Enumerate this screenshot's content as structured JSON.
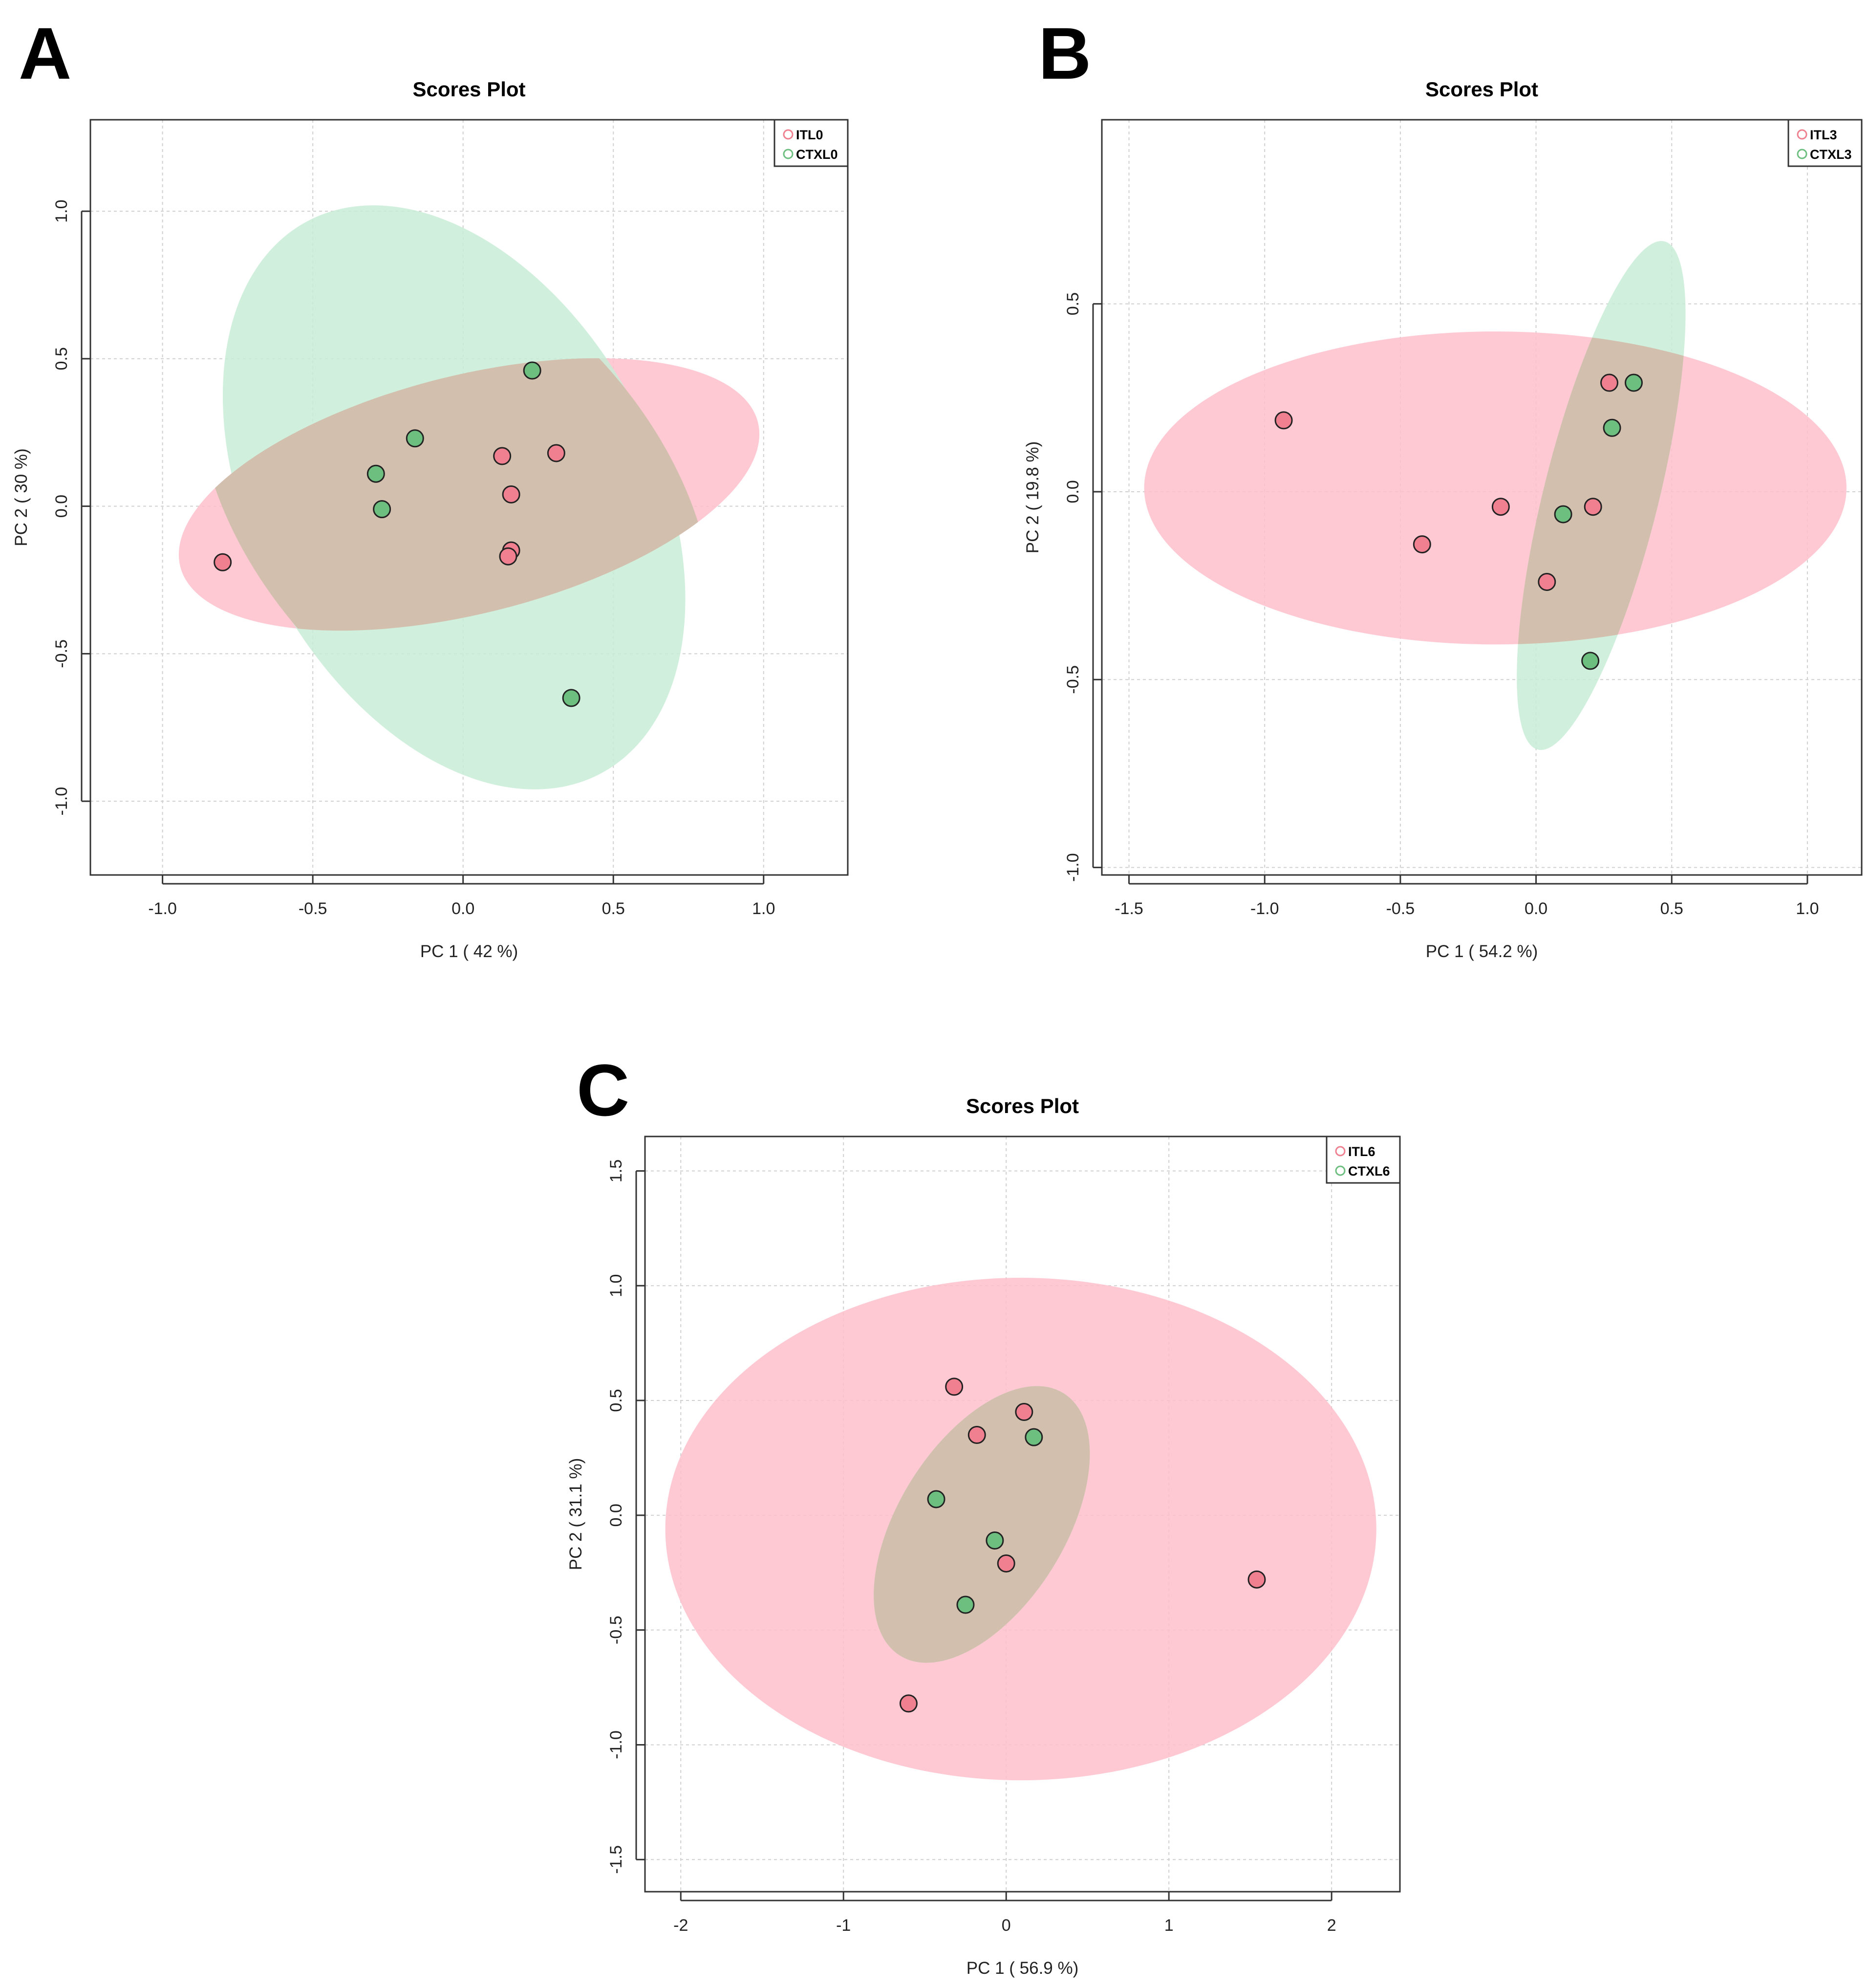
{
  "panels": [
    "A",
    "B",
    "C"
  ],
  "colors": {
    "group1": "#f08090",
    "group2": "#6dbf80",
    "ellipse1": "#ffc0cd",
    "ellipse2": "#c8ecd6"
  },
  "chart_data": [
    {
      "type": "scatter",
      "title": "Scores Plot",
      "xlabel": "PC 1 ( 42 %)",
      "ylabel": "PC 2 ( 30 %)",
      "xlim": [
        -1.24,
        1.28
      ],
      "ylim": [
        -1.25,
        1.31
      ],
      "xticks": [
        "-1.0",
        "-0.5",
        "0.0",
        "0.5",
        "1.0"
      ],
      "yticks": [
        "-1.0",
        "-0.5",
        "0.0",
        "0.5",
        "1.0"
      ],
      "xtick_values": [
        -1.0,
        -0.5,
        0.0,
        0.5,
        1.0
      ],
      "ytick_values": [
        -1.0,
        -0.5,
        0.0,
        0.5,
        1.0
      ],
      "legend": "top-right",
      "grid": true,
      "series": [
        {
          "name": "ITL0",
          "color": "#f08090",
          "points": [
            [
              -0.8,
              -0.19
            ],
            [
              0.13,
              0.17
            ],
            [
              0.31,
              0.18
            ],
            [
              0.16,
              0.04
            ],
            [
              0.16,
              -0.15
            ],
            [
              0.15,
              -0.17
            ]
          ],
          "ellipse": {
            "cx": 0.02,
            "cy": 0.04,
            "rx": 1.0,
            "ry": 0.4,
            "angle": 14
          }
        },
        {
          "name": "CTXL0",
          "color": "#6dbf80",
          "points": [
            [
              0.23,
              0.46
            ],
            [
              -0.16,
              0.23
            ],
            [
              -0.29,
              0.11
            ],
            [
              -0.27,
              -0.01
            ],
            [
              0.36,
              -0.65
            ]
          ],
          "ellipse": {
            "cx": -0.03,
            "cy": 0.03,
            "rx": 1.05,
            "ry": 0.68,
            "angle": -62
          }
        }
      ]
    },
    {
      "type": "scatter",
      "title": "Scores Plot",
      "xlabel": "PC 1 ( 54.2 %)",
      "ylabel": "PC 2 ( 19.8 %)",
      "xlim": [
        -1.6,
        1.2
      ],
      "ylim": [
        -1.02,
        0.99
      ],
      "xticks": [
        "-1.5",
        "-1.0",
        "-0.5",
        "0.0",
        "0.5",
        "1.0"
      ],
      "yticks": [
        "-1.0",
        "-0.5",
        "0.0",
        "0.5"
      ],
      "xtick_values": [
        -1.5,
        -1.0,
        -0.5,
        0.0,
        0.5,
        1.0
      ],
      "ytick_values": [
        -1.0,
        -0.5,
        0.0,
        0.5
      ],
      "legend": "top-right",
      "grid": true,
      "series": [
        {
          "name": "ITL3",
          "color": "#f08090",
          "points": [
            [
              -0.93,
              0.19
            ],
            [
              0.27,
              0.29
            ],
            [
              -0.42,
              -0.14
            ],
            [
              -0.13,
              -0.04
            ],
            [
              0.21,
              -0.04
            ],
            [
              0.04,
              -0.24
            ]
          ],
          "ellipse": {
            "cx": -0.15,
            "cy": 0.01,
            "rx": 1.1,
            "ry": 0.49,
            "angle": 0
          }
        },
        {
          "name": "CTXL3",
          "color": "#6dbf80",
          "points": [
            [
              0.36,
              0.29
            ],
            [
              0.28,
              0.17
            ],
            [
              0.1,
              -0.06
            ],
            [
              0.2,
              -0.45
            ]
          ],
          "ellipse": {
            "cx": 0.24,
            "cy": -0.01,
            "rx": 0.82,
            "ry": 0.18,
            "angle": 76
          }
        }
      ]
    },
    {
      "type": "scatter",
      "title": "Scores Plot",
      "xlabel": "PC 1 ( 56.9 %)",
      "ylabel": "PC 2 ( 31.1 %)",
      "xlim": [
        -2.22,
        2.42
      ],
      "ylim": [
        -1.64,
        1.65
      ],
      "xticks": [
        "-2",
        "-1",
        "0",
        "1",
        "2"
      ],
      "yticks": [
        "-1.5",
        "-1.0",
        "-0.5",
        "0.0",
        "0.5",
        "1.0",
        "1.5"
      ],
      "xtick_values": [
        -2,
        -1,
        0,
        1,
        2
      ],
      "ytick_values": [
        -1.5,
        -1.0,
        -0.5,
        0.0,
        0.5,
        1.0,
        1.5
      ],
      "legend": "top-right",
      "grid": true,
      "series": [
        {
          "name": "ITL6",
          "color": "#f08090",
          "points": [
            [
              -0.32,
              0.56
            ],
            [
              0.11,
              0.45
            ],
            [
              -0.18,
              0.35
            ],
            [
              0.0,
              -0.21
            ],
            [
              1.54,
              -0.28
            ],
            [
              -0.6,
              -0.82
            ]
          ],
          "ellipse": {
            "cx": 0.09,
            "cy": -0.06,
            "rx": 1.84,
            "ry": 1.3,
            "angle": 0
          }
        },
        {
          "name": "CTXL6",
          "color": "#6dbf80",
          "points": [
            [
              0.17,
              0.34
            ],
            [
              -0.43,
              0.07
            ],
            [
              -0.07,
              -0.11
            ],
            [
              -0.25,
              -0.39
            ]
          ],
          "ellipse": {
            "cx": -0.15,
            "cy": -0.04,
            "rx": 0.8,
            "ry": 0.43,
            "angle": 58
          }
        }
      ]
    }
  ]
}
